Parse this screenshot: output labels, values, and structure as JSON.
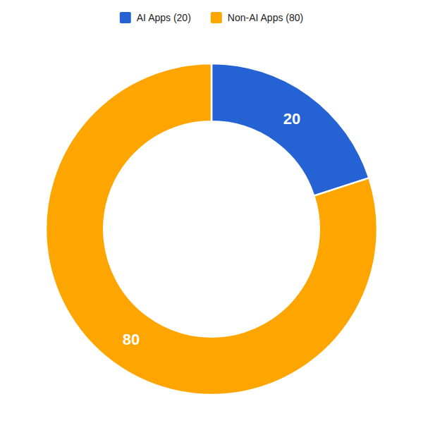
{
  "chart_data": {
    "type": "donut",
    "categories": [
      "AI Apps (20)",
      "Non-AI Apps (80)"
    ],
    "values": [
      20,
      80
    ],
    "colors": [
      "#2563d4",
      "#FFA500"
    ],
    "data_labels": true,
    "legend": "top"
  }
}
